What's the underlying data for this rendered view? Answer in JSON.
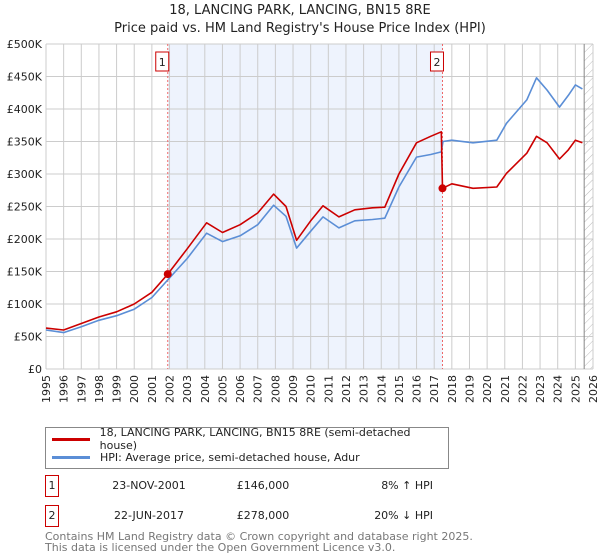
{
  "chart_data": {
    "type": "line",
    "title": "18, LANCING PARK, LANCING, BN15 8RE",
    "subtitle": "Price paid vs. HM Land Registry's House Price Index (HPI)",
    "xlim": [
      1995,
      2026
    ],
    "ylim": [
      0,
      500000
    ],
    "y_ticks": [
      0,
      50000,
      100000,
      150000,
      200000,
      250000,
      300000,
      350000,
      400000,
      450000,
      500000
    ],
    "y_tick_labels": [
      "£0",
      "£50K",
      "£100K",
      "£150K",
      "£200K",
      "£250K",
      "£300K",
      "£350K",
      "£400K",
      "£450K",
      "£500K"
    ],
    "x_ticks": [
      1995,
      1996,
      1997,
      1998,
      1999,
      2000,
      2001,
      2002,
      2003,
      2004,
      2005,
      2006,
      2007,
      2008,
      2009,
      2010,
      2011,
      2012,
      2013,
      2014,
      2015,
      2016,
      2017,
      2018,
      2019,
      2020,
      2021,
      2022,
      2023,
      2024,
      2025,
      2026
    ],
    "grid": true,
    "shaded_range": [
      2001.9,
      2017.47
    ],
    "hatched_from": 2025.5,
    "series": [
      {
        "name": "18, LANCING PARK, LANCING, BN15 8RE (semi-detached house)",
        "color": "#cc0000",
        "x": [
          1995,
          1996,
          1997,
          1998,
          1999,
          2000,
          2001,
          2001.9,
          2003,
          2004.1,
          2005,
          2006,
          2007,
          2007.9,
          2008.6,
          2009.2,
          2010,
          2010.7,
          2011.6,
          2012.5,
          2013.5,
          2014.2,
          2015,
          2016,
          2016.8,
          2017.4,
          2017.47,
          2018,
          2019.2,
          2020.55,
          2021.1,
          2022.25,
          2022.8,
          2023.4,
          2024.1,
          2024.6,
          2025.0,
          2025.4
        ],
        "y": [
          63000,
          60000,
          70000,
          80000,
          88000,
          100000,
          118000,
          146000,
          185000,
          225000,
          210000,
          222000,
          240000,
          269000,
          250000,
          198000,
          228000,
          251000,
          234000,
          245000,
          248000,
          249000,
          300000,
          348000,
          358000,
          365000,
          278000,
          285000,
          278000,
          280000,
          301000,
          332000,
          358000,
          348000,
          323000,
          337000,
          352000,
          348000
        ]
      },
      {
        "name": "HPI: Average price, semi-detached house, Adur",
        "color": "#5b8ed6",
        "x": [
          1995,
          1996,
          1997,
          1998,
          1999,
          2000,
          2001,
          2001.9,
          2003,
          2004.1,
          2005,
          2006,
          2007,
          2007.9,
          2008.6,
          2009.2,
          2010,
          2010.7,
          2011.6,
          2012.5,
          2013.5,
          2014.2,
          2015,
          2016,
          2016.8,
          2017.4,
          2017.5,
          2018,
          2019.2,
          2020.55,
          2021.1,
          2022.25,
          2022.8,
          2023.4,
          2024.1,
          2024.6,
          2025.0,
          2025.4
        ],
        "y": [
          60000,
          56000,
          65000,
          75000,
          82000,
          92000,
          110000,
          137000,
          170000,
          209000,
          196000,
          205000,
          222000,
          252000,
          235000,
          186000,
          212000,
          234000,
          217000,
          228000,
          230000,
          232000,
          280000,
          326000,
          330000,
          334000,
          350000,
          352000,
          348000,
          352000,
          378000,
          414000,
          448000,
          429000,
          403000,
          421000,
          437000,
          431000
        ]
      }
    ],
    "sales": [
      {
        "label": "1",
        "x": 2001.9,
        "price": 146000
      },
      {
        "label": "2",
        "x": 2017.47,
        "price": 278000
      }
    ]
  },
  "legend": {
    "property": "18, LANCING PARK, LANCING, BN15 8RE (semi-detached house)",
    "hpi": "HPI: Average price, semi-detached house, Adur"
  },
  "sales_table": [
    {
      "label": "1",
      "date": "23-NOV-2001",
      "price": "£146,000",
      "hpi": "8% ↑ HPI"
    },
    {
      "label": "2",
      "date": "22-JUN-2017",
      "price": "£278,000",
      "hpi": "20% ↓ HPI"
    }
  ],
  "footer": {
    "line1": "Contains HM Land Registry data © Crown copyright and database right 2025.",
    "line2": "This data is licensed under the Open Government Licence v3.0."
  }
}
